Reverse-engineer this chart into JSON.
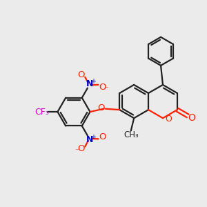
{
  "bg_color": "#ebebeb",
  "bond_color": "#222222",
  "oxygen_color": "#ff2200",
  "nitrogen_color": "#0000cc",
  "fluorine_color": "#cc00cc",
  "lw": 1.6,
  "fig_size": [
    3.0,
    3.0
  ],
  "dpi": 100,
  "xlim": [
    0,
    10
  ],
  "ylim": [
    0,
    10
  ]
}
